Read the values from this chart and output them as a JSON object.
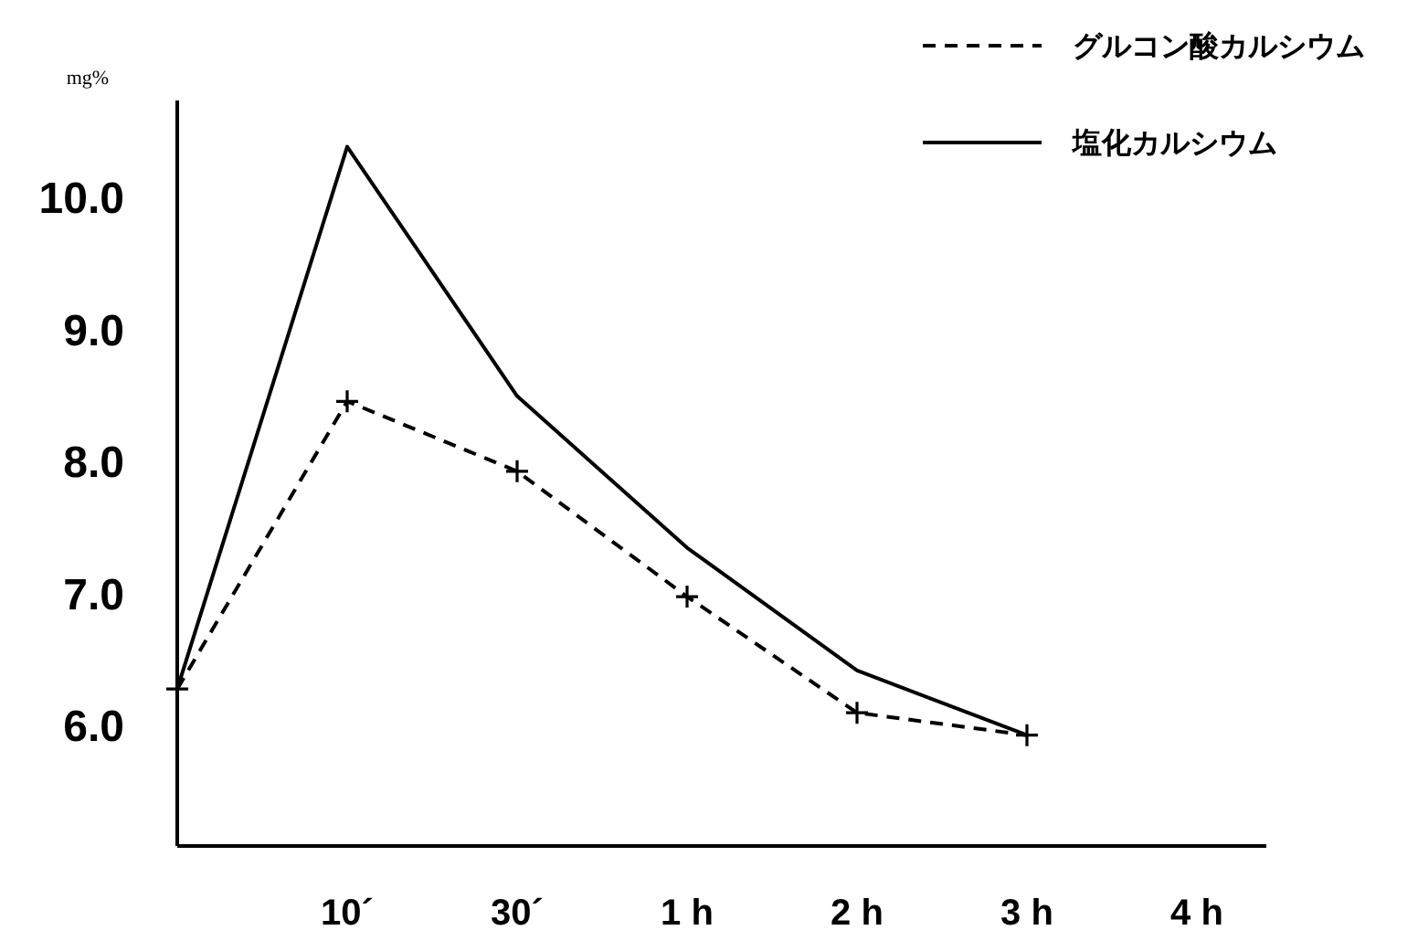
{
  "chart_data": {
    "type": "line",
    "ylabel": "mg%",
    "categories": [
      null,
      "10´",
      "30´",
      "1 h",
      "2 h",
      "3 h",
      "4 h"
    ],
    "series": [
      {
        "name": "グルコン酸カルシウム",
        "color": "#000000",
        "line_style": "dashed",
        "marker": "cross",
        "values": [
          6.29,
          8.47,
          7.94,
          6.99,
          6.11,
          5.94,
          null
        ]
      },
      {
        "name": "塩化カルシウム",
        "color": "#000000",
        "line_style": "solid",
        "marker": "none",
        "values": [
          6.29,
          10.4,
          8.51,
          7.36,
          6.43,
          5.94,
          null
        ]
      }
    ],
    "ylim": [
      5.1,
      10.75
    ],
    "yticks": [
      {
        "value": 6,
        "label": "6.0"
      },
      {
        "value": 7,
        "label": "7.0"
      },
      {
        "value": 8,
        "label": "8.0"
      },
      {
        "value": 9,
        "label": "9.0"
      },
      {
        "value": 10,
        "label": "10.0"
      }
    ],
    "legend": "top right"
  }
}
